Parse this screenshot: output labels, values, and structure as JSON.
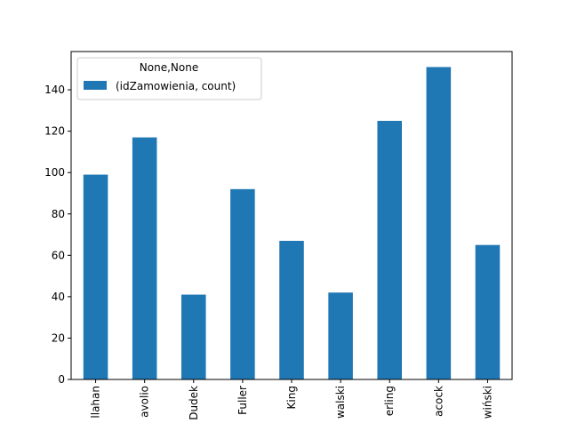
{
  "chart_data": {
    "type": "bar",
    "categories": [
      "llahan",
      "avolio",
      "Dudek",
      "Fuller",
      "King",
      "walski",
      "erling",
      "acock",
      "wiński"
    ],
    "series": [
      {
        "name": "(idZamowienia, count)",
        "values": [
          99,
          117,
          41,
          92,
          67,
          42,
          125,
          151,
          65
        ],
        "color": "#1f77b4"
      }
    ],
    "legend_title": "None,None",
    "legend_position": "top-left",
    "yticks": [
      0,
      20,
      40,
      60,
      80,
      100,
      120,
      140
    ],
    "ylim": [
      0,
      158.5
    ],
    "grid": false,
    "xlabel": "",
    "ylabel": "",
    "title": ""
  }
}
